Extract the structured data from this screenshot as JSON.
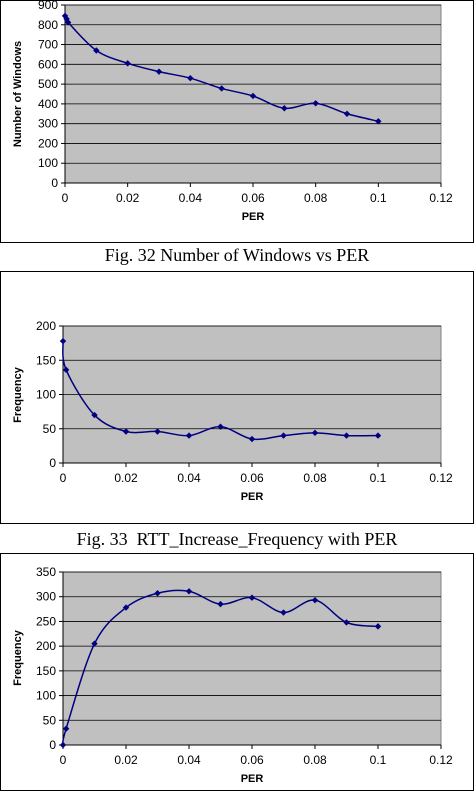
{
  "figures": [
    {
      "caption": "Fig. 32 Number of Windows vs PER"
    },
    {
      "caption": "Fig. 33  RTT_Increase_Frequency with PER"
    },
    {
      "caption": ""
    }
  ],
  "chart_data": [
    {
      "type": "line",
      "title": "",
      "xlabel": "PER",
      "ylabel": "Number of Windows",
      "xlim": [
        0,
        0.12
      ],
      "ylim": [
        0,
        900
      ],
      "xticks": [
        "0",
        "0.02",
        "0.04",
        "0.06",
        "0.08",
        "0.1",
        "0.12"
      ],
      "yticks": [
        "0",
        "100",
        "200",
        "300",
        "400",
        "500",
        "600",
        "700",
        "800",
        "900"
      ],
      "grid": "horizontal",
      "plot_background": "#c0c0c0",
      "line_color": "#000080",
      "series": [
        {
          "x": [
            0,
            0.0005,
            0.001,
            0.01,
            0.02,
            0.03,
            0.04,
            0.05,
            0.06,
            0.07,
            0.08,
            0.09,
            0.1
          ],
          "y": [
            845,
            830,
            812,
            670,
            605,
            563,
            530,
            478,
            440,
            378,
            403,
            350,
            312
          ]
        }
      ]
    },
    {
      "type": "line",
      "title": "",
      "xlabel": "PER",
      "ylabel": "Frequency",
      "xlim": [
        0,
        0.12
      ],
      "ylim": [
        0,
        200
      ],
      "xticks": [
        "0",
        "0.02",
        "0.04",
        "0.06",
        "0.08",
        "0.1",
        "0.12"
      ],
      "yticks": [
        "0",
        "50",
        "100",
        "150",
        "200"
      ],
      "grid": "horizontal",
      "plot_background": "#c0c0c0",
      "line_color": "#000080",
      "series": [
        {
          "x": [
            0,
            0.001,
            0.01,
            0.02,
            0.03,
            0.04,
            0.05,
            0.06,
            0.07,
            0.08,
            0.09,
            0.1
          ],
          "y": [
            178,
            136,
            70,
            46,
            46,
            40,
            53,
            35,
            40,
            44,
            40,
            40
          ]
        }
      ]
    },
    {
      "type": "line",
      "title": "",
      "xlabel": "PER",
      "ylabel": "Frequency",
      "xlim": [
        0,
        0.12
      ],
      "ylim": [
        0,
        350
      ],
      "xticks": [
        "0",
        "0.02",
        "0.04",
        "0.06",
        "0.08",
        "0.1",
        "0.12"
      ],
      "yticks": [
        "0",
        "50",
        "100",
        "150",
        "200",
        "250",
        "300",
        "350"
      ],
      "grid": "horizontal",
      "plot_background": "#c0c0c0",
      "line_color": "#000080",
      "series": [
        {
          "x": [
            0,
            0.001,
            0.01,
            0.02,
            0.03,
            0.04,
            0.05,
            0.06,
            0.07,
            0.08,
            0.09,
            0.1
          ],
          "y": [
            0,
            33,
            205,
            278,
            307,
            311,
            285,
            298,
            268,
            293,
            248,
            240
          ]
        }
      ]
    }
  ]
}
